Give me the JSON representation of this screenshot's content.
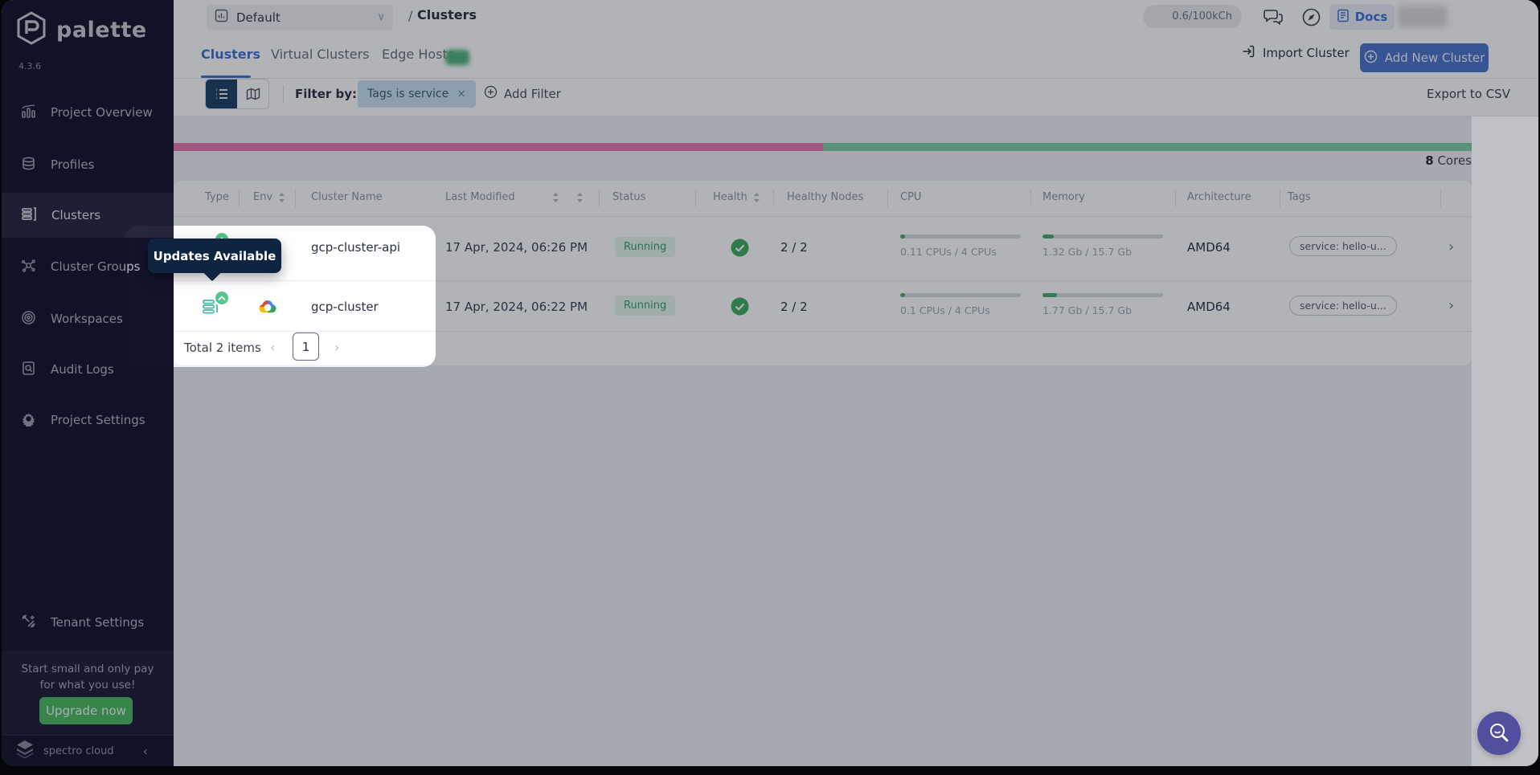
{
  "brand": {
    "name": "palette",
    "version": "4.3.6",
    "footer": "spectro cloud",
    "collapse": "‹"
  },
  "sidebar": {
    "items": [
      {
        "label": "Project Overview"
      },
      {
        "label": "Profiles"
      },
      {
        "label": "Clusters"
      },
      {
        "label": "Cluster Groups"
      },
      {
        "label": "Workspaces"
      },
      {
        "label": "Audit Logs"
      },
      {
        "label": "Project Settings"
      }
    ],
    "tenant_settings": "Tenant Settings",
    "upsell": {
      "line1": "Start small and only pay",
      "line2": "for what you use!",
      "button": "Upgrade now"
    }
  },
  "topbar": {
    "project": "Default",
    "breadcrumb_separator": "/",
    "page": "Clusters",
    "usage_pill": "0.6/100kCh",
    "docs": "Docs"
  },
  "tabs": {
    "clusters": "Clusters",
    "virtual_clusters": "Virtual Clusters",
    "edge_hosts": "Edge Hosts"
  },
  "header_actions": {
    "import": "Import Cluster",
    "add_new": "Add New Cluster"
  },
  "filter_bar": {
    "label": "Filter by:",
    "chip": "Tags is service",
    "chip_remove": "×",
    "add_filter": "Add Filter",
    "export": "Export to CSV"
  },
  "capacity": {
    "value": "8",
    "unit": " Cores",
    "used_pct": "50%"
  },
  "table": {
    "columns": [
      {
        "label": "Type"
      },
      {
        "label": "Env"
      },
      {
        "label": "Cluster Name"
      },
      {
        "label": "Last Modified"
      },
      {
        "label": "Status"
      },
      {
        "label": "Health"
      },
      {
        "label": "Healthy Nodes"
      },
      {
        "label": "CPU"
      },
      {
        "label": "Memory"
      },
      {
        "label": "Architecture"
      },
      {
        "label": "Tags"
      }
    ],
    "rows": [
      {
        "name": "gcp-cluster-api",
        "env": "gcp",
        "last_modified": "17 Apr, 2024, 06:26 PM",
        "status": "Running",
        "nodes": "2 / 2",
        "cpu": "0.11 CPUs / 4 CPUs",
        "cpu_w": "4%",
        "memory": "1.32 Gb / 15.7 Gb",
        "mem_w": "9%",
        "architecture": "AMD64",
        "tag": "service: hello-u...",
        "chevron": "›"
      },
      {
        "name": "gcp-cluster",
        "env": "gcp",
        "last_modified": "17 Apr, 2024, 06:22 PM",
        "status": "Running",
        "nodes": "2 / 2",
        "cpu": "0.1 CPUs / 4 CPUs",
        "cpu_w": "4%",
        "memory": "1.77 Gb / 15.7 Gb",
        "mem_w": "12%",
        "architecture": "AMD64",
        "tag": "service: hello-u...",
        "chevron": "›"
      }
    ]
  },
  "pagination": {
    "total": "Total 2 items",
    "prev": "‹",
    "page": "1",
    "next": "›"
  },
  "tooltip": {
    "text": "Updates Available"
  },
  "colors": {
    "primary_blue": "#3e72d0",
    "button_blue": "#4a74cc",
    "green": "#4db863",
    "capacity_pink": "#e678ae",
    "capacity_green": "#7ccda6",
    "profile_teal": "#49b8a4",
    "update_green": "#55c58f",
    "tooltip_bg": "#0e2441",
    "sidebar_bg": "#12122b",
    "fab_indigo": "#52509e"
  }
}
